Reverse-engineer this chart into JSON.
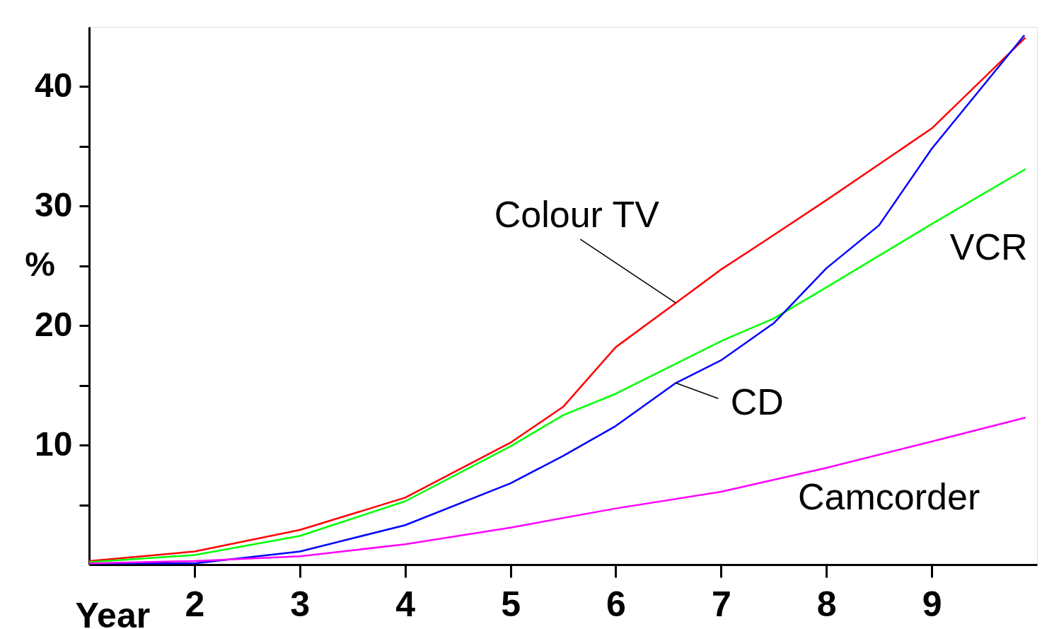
{
  "chart_data": {
    "type": "line",
    "xlabel": "Year",
    "ylabel": "%",
    "xlim": [
      1,
      10
    ],
    "xticks": [
      2,
      3,
      4,
      5,
      6,
      7,
      8,
      9
    ],
    "ylim": [
      0,
      45
    ],
    "yticks": [
      {
        "value": 5,
        "label": null
      },
      10,
      {
        "value": 15,
        "label": null
      },
      20,
      {
        "value": 25,
        "label": null
      },
      30,
      {
        "value": 35,
        "label": null
      },
      40
    ],
    "grid": false,
    "legend": false,
    "marker": "none",
    "line_style": "solid",
    "series": [
      {
        "name": "Colour TV",
        "color": "#ff0000",
        "x": [
          1.0,
          2,
          3,
          4,
          5,
          5.5,
          6,
          6.57,
          7,
          7.4,
          8,
          9,
          9.89
        ],
        "values": [
          0.3,
          1.1,
          2.9,
          5.6,
          10.2,
          13.2,
          18.2,
          21.9,
          24.7,
          27.0,
          30.5,
          36.5,
          44.1
        ]
      },
      {
        "name": "VCR",
        "color": "#00ff00",
        "x": [
          1.0,
          2,
          3,
          4,
          5,
          5.5,
          6,
          7,
          7.5,
          8,
          9,
          9.89
        ],
        "values": [
          0.2,
          0.8,
          2.4,
          5.3,
          9.9,
          12.5,
          14.3,
          18.7,
          20.6,
          23.2,
          28.5,
          33.1
        ]
      },
      {
        "name": "CD",
        "color": "#0000ff",
        "x": [
          1.0,
          2,
          3,
          4,
          5,
          5.5,
          6,
          6.57,
          7,
          7.5,
          8,
          8.5,
          9,
          9.88
        ],
        "values": [
          0.1,
          0.1,
          1.1,
          3.3,
          6.8,
          9.1,
          11.6,
          15.2,
          17.1,
          20.2,
          24.8,
          28.4,
          34.8,
          44.3
        ]
      },
      {
        "name": "Camcorder",
        "color": "#ff00ff",
        "x": [
          1.0,
          2,
          3,
          4,
          5,
          6,
          7,
          8,
          9,
          9.89
        ],
        "values": [
          0.1,
          0.3,
          0.7,
          1.7,
          3.1,
          4.7,
          6.1,
          8.1,
          10.3,
          12.3
        ]
      }
    ]
  }
}
